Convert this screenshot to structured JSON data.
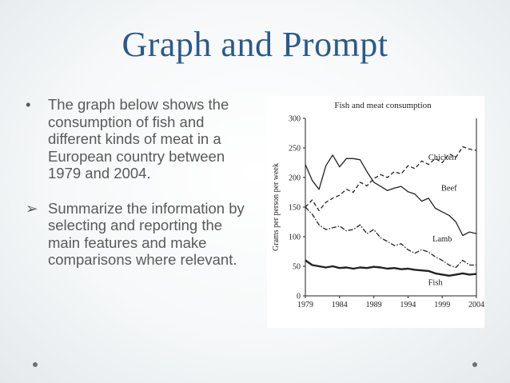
{
  "slide": {
    "title": "Graph and Prompt",
    "bullets": [
      {
        "marker": "•",
        "text": "The graph below shows the consumption of fish and different kinds of meat in a European country between 1979 and 2004."
      },
      {
        "marker": "➢",
        "text": "Summarize the information by selecting and reporting the main features and make comparisons where relevant."
      }
    ]
  },
  "chart_data": {
    "type": "line",
    "title": "Fish and meat consumption",
    "ylabel": "Grams per person per week",
    "xlabel": "",
    "ylim": [
      0,
      300
    ],
    "xlim": [
      1979,
      2004
    ],
    "yticks": [
      0,
      50,
      100,
      150,
      200,
      250,
      300
    ],
    "xticks": [
      1979,
      1984,
      1989,
      1994,
      1999,
      2004
    ],
    "grid": false,
    "series": [
      {
        "name": "Chicken",
        "style": "dashed",
        "x": [
          1979,
          1980,
          1981,
          1982,
          1983,
          1984,
          1985,
          1986,
          1987,
          1988,
          1989,
          1990,
          1991,
          1992,
          1993,
          1994,
          1995,
          1996,
          1997,
          1998,
          1999,
          2000,
          2001,
          2002,
          2003,
          2004
        ],
        "y": [
          150,
          162,
          144,
          158,
          165,
          170,
          180,
          175,
          192,
          186,
          198,
          205,
          200,
          210,
          206,
          220,
          215,
          228,
          222,
          232,
          225,
          240,
          234,
          252,
          248,
          246
        ]
      },
      {
        "name": "Beef",
        "style": "solid",
        "x": [
          1979,
          1980,
          1981,
          1982,
          1983,
          1984,
          1985,
          1986,
          1987,
          1988,
          1989,
          1990,
          1991,
          1992,
          1993,
          1994,
          1995,
          1996,
          1997,
          1998,
          1999,
          2000,
          2001,
          2002,
          2003,
          2004
        ],
        "y": [
          222,
          195,
          180,
          220,
          238,
          218,
          232,
          232,
          230,
          210,
          192,
          185,
          178,
          182,
          185,
          176,
          172,
          160,
          165,
          148,
          142,
          136,
          125,
          102,
          108,
          105
        ]
      },
      {
        "name": "Lamb",
        "style": "dash-dot",
        "x": [
          1979,
          1980,
          1981,
          1982,
          1983,
          1984,
          1985,
          1986,
          1987,
          1988,
          1989,
          1990,
          1991,
          1992,
          1993,
          1994,
          1995,
          1996,
          1997,
          1998,
          1999,
          2000,
          2001,
          2002,
          2003,
          2004
        ],
        "y": [
          150,
          138,
          120,
          112,
          115,
          118,
          110,
          112,
          120,
          105,
          112,
          98,
          92,
          85,
          88,
          78,
          72,
          78,
          74,
          66,
          60,
          52,
          48,
          60,
          52,
          52
        ]
      },
      {
        "name": "Fish",
        "style": "solid-thick",
        "x": [
          1979,
          1980,
          1981,
          1982,
          1983,
          1984,
          1985,
          1986,
          1987,
          1988,
          1989,
          1990,
          1991,
          1992,
          1993,
          1994,
          1995,
          1996,
          1997,
          1998,
          1999,
          2000,
          2001,
          2002,
          2003,
          2004
        ],
        "y": [
          60,
          52,
          50,
          48,
          50,
          47,
          48,
          46,
          48,
          47,
          49,
          48,
          46,
          47,
          45,
          46,
          44,
          43,
          42,
          38,
          36,
          34,
          36,
          38,
          36,
          37
        ]
      }
    ]
  }
}
